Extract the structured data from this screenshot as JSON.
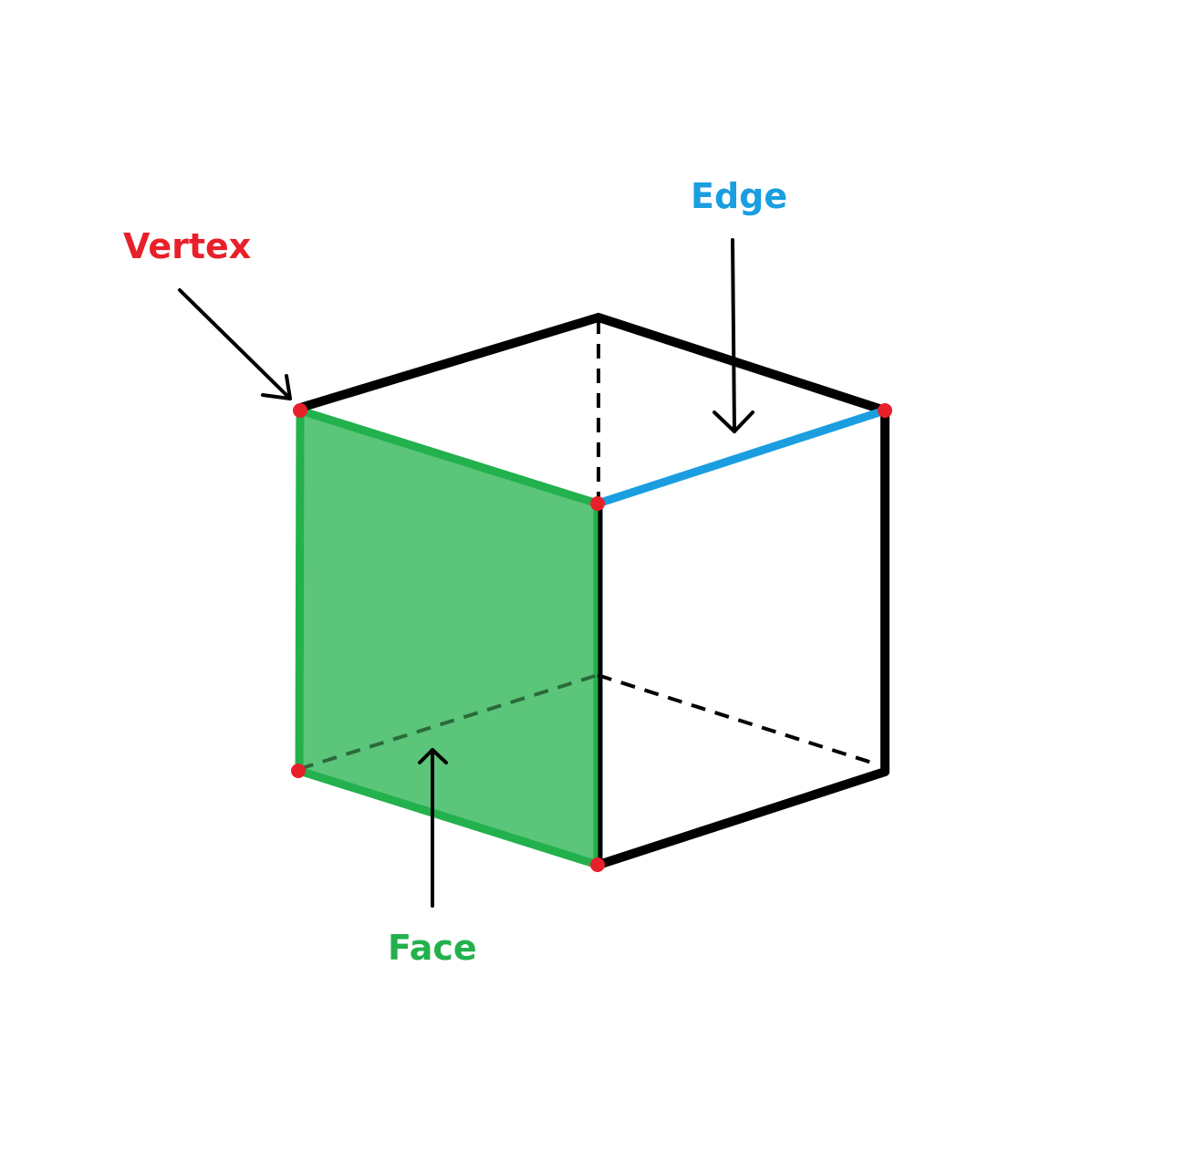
{
  "labels": {
    "vertex": "Vertex",
    "edge": "Edge",
    "face": "Face"
  },
  "colors": {
    "vertex": "#e8202a",
    "edge": "#1a9ee0",
    "face_fill": "#5bc57a",
    "face_stroke": "#22b14c",
    "outline": "#000000",
    "background": "#ffffff"
  }
}
